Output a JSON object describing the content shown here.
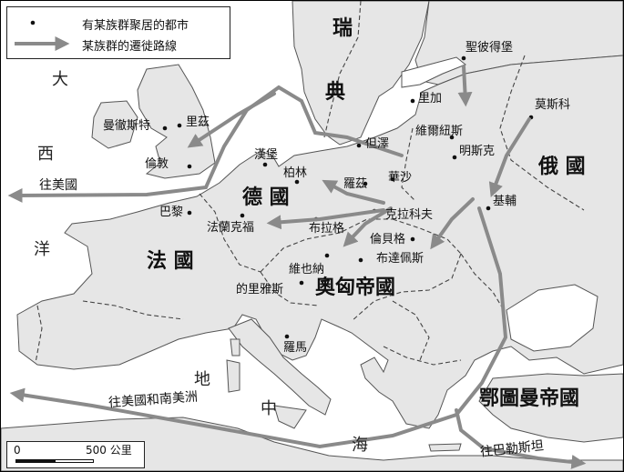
{
  "legend": {
    "city_label": "有某族群聚居的都市",
    "route_label": "某族群的遷徙路線"
  },
  "seas": {
    "atlantic": [
      "大",
      "西",
      "洋"
    ],
    "mediterranean": [
      "地",
      "中",
      "海"
    ]
  },
  "countries": {
    "sweden": [
      "瑞",
      "典"
    ],
    "russia": "俄  國",
    "germany": "德 國",
    "france": "法  國",
    "austria_hungary": "奧匈帝國",
    "ottoman": "鄂圖曼帝國"
  },
  "cities": {
    "manchester": "曼徹斯特",
    "leeds": "里茲",
    "london": "倫敦",
    "paris": "巴黎",
    "hamburg": "漢堡",
    "berlin": "柏林",
    "frankfurt": "法蘭克福",
    "prague": "布拉格",
    "vienna": "維也納",
    "trieste": "的里雅斯",
    "rome": "羅馬",
    "danzig": "但澤",
    "poznan": "羅茲",
    "warsaw": "華沙",
    "krakow": "克拉科夫",
    "lemberg": "倫貝格",
    "budapest": "布達佩斯",
    "riga": "里加",
    "vilnius": "維爾紐斯",
    "minsk": "明斯克",
    "st_petersburg": "聖彼得堡",
    "moscow": "莫斯科",
    "kiev": "基輔"
  },
  "routes": {
    "to_america": "往美國",
    "to_americas": "往美國和南美洲",
    "to_palestine": "往巴勒斯坦"
  },
  "scale": {
    "zero": "0",
    "distance": "500 公里"
  }
}
